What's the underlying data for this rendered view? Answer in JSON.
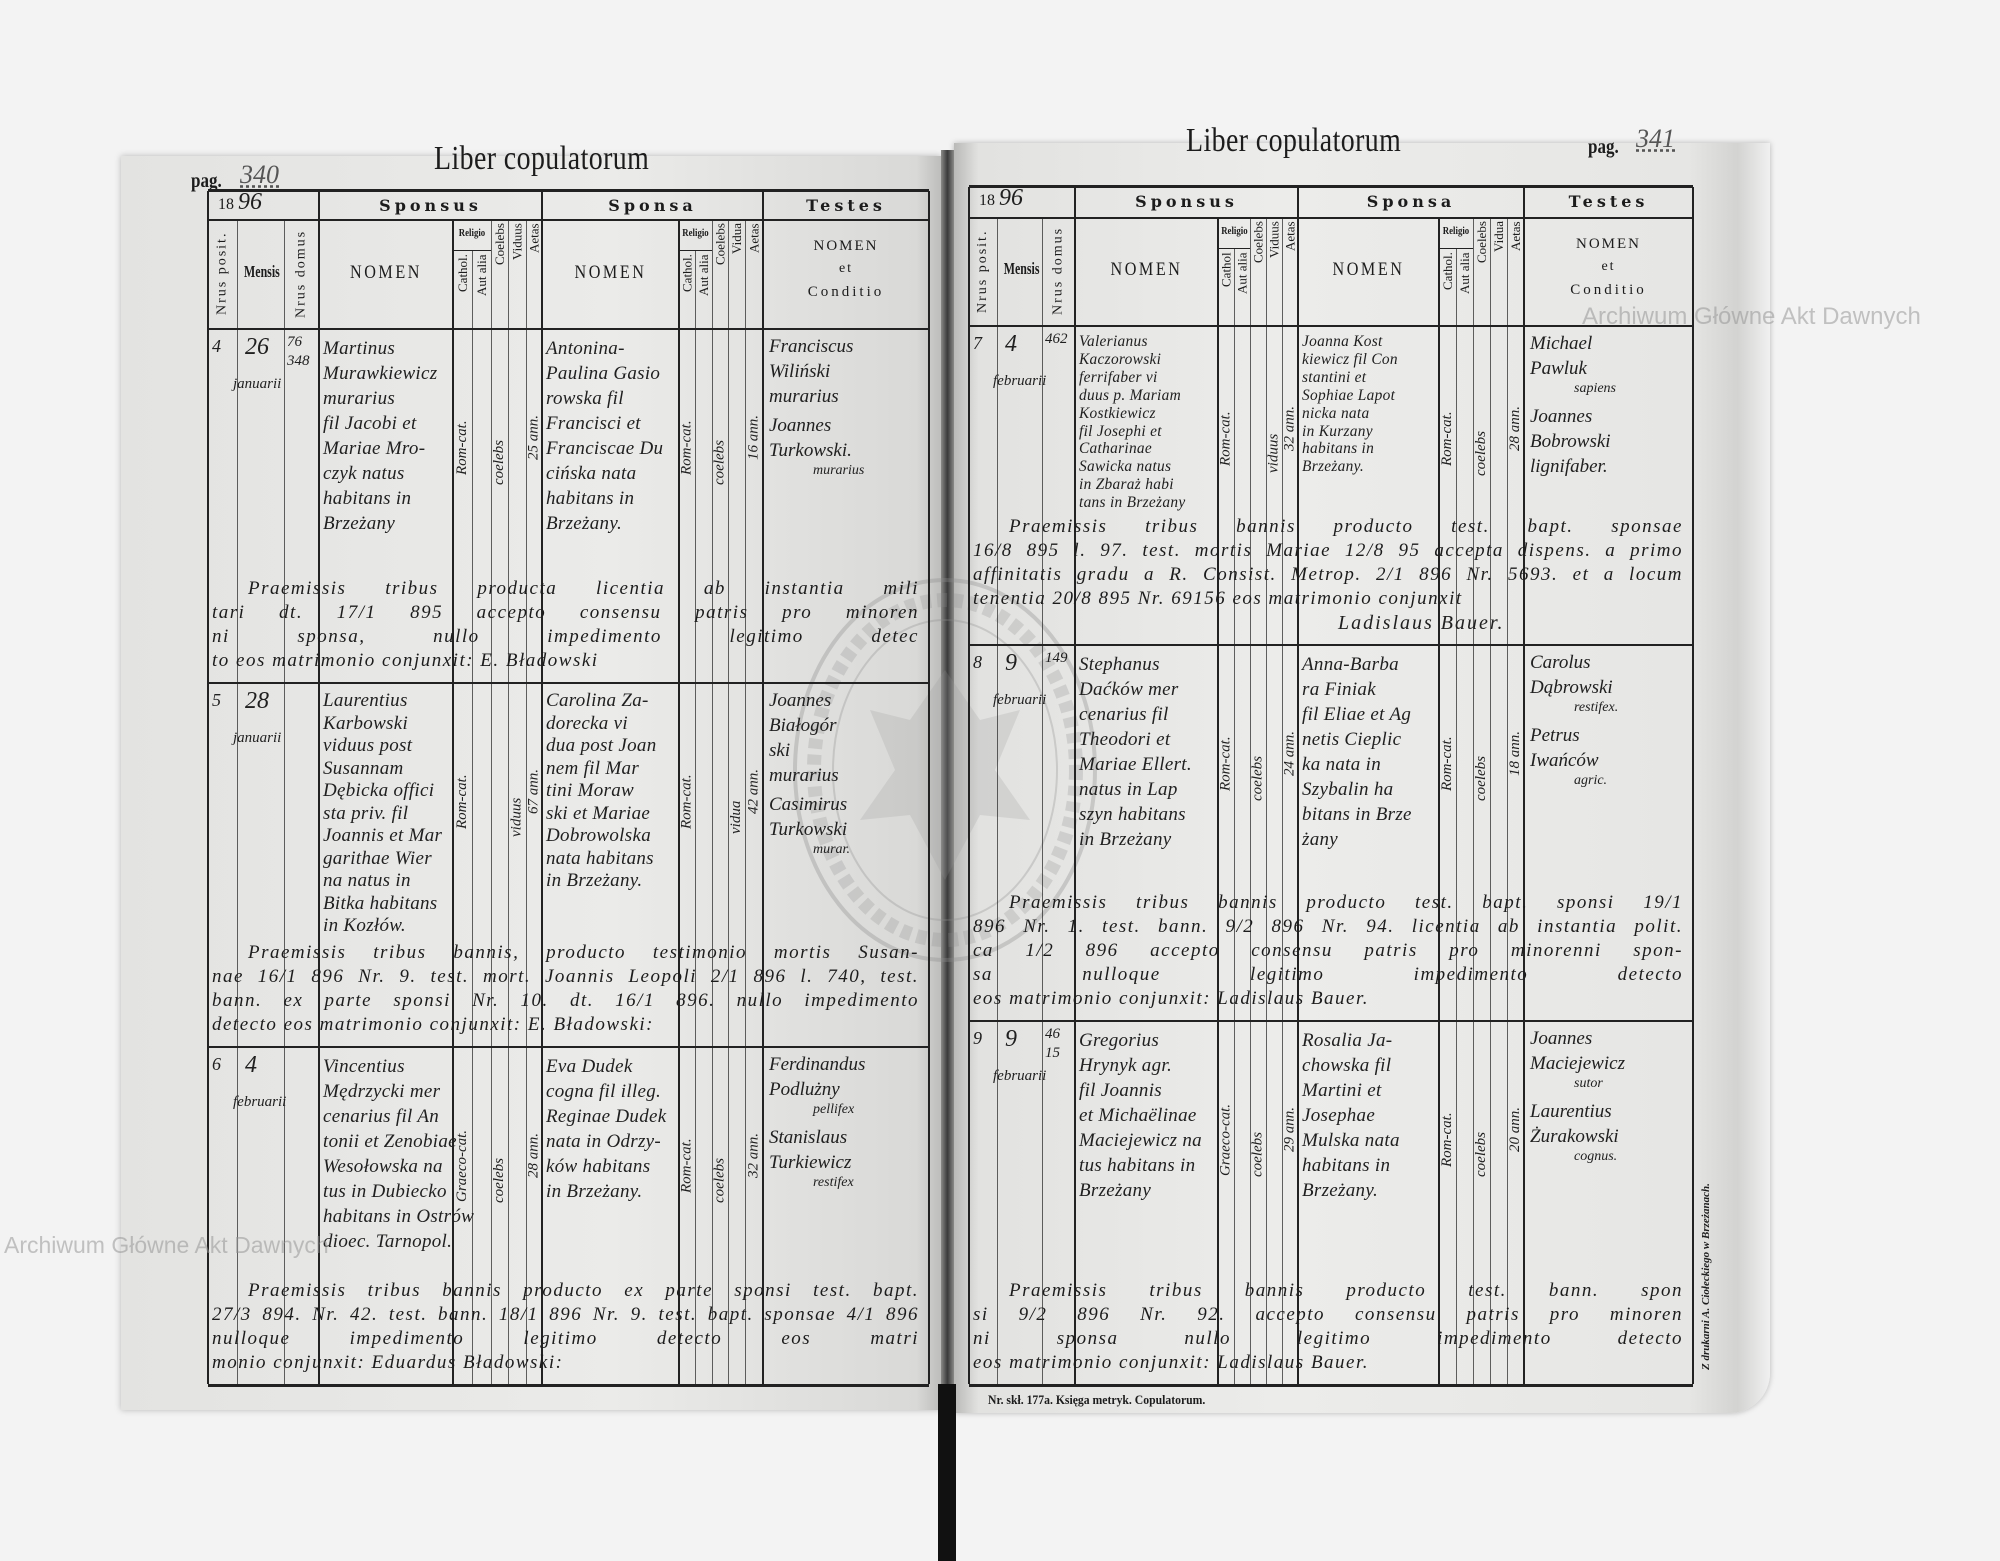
{
  "watermark": {
    "archive_name": "Archiwum Główne Akt Dawnych",
    "seal_text": "ARCHIWUM GŁÓWNE AKT DAWNYCH"
  },
  "footer": {
    "form_number": "Nr. skł. 177a. Księga metryk. Copulatorum.",
    "printer": "Z drukarni A. Ciołeckiego w Brzeżanach."
  },
  "pages": {
    "left": {
      "pag_label": "pag.",
      "pag_number": "340",
      "title": "Liber copulatorum",
      "header": {
        "year_printed": "18",
        "year_written": "96",
        "group_sponsus": "Sponsus",
        "group_sponsa": "Sponsa",
        "group_testes": "Testes",
        "col_nr_posit": "Nrus posit.",
        "col_mensis": "Mensis",
        "col_nr_domus": "Nrus domus",
        "sponsus_nomen": "NOMEN",
        "sponsus_religio": "Religio",
        "sponsus_sub": [
          "Cathol.",
          "Aut alia",
          "Coelebs",
          "Viduus",
          "Aetas"
        ],
        "sponsa_nomen": "NOMEN",
        "sponsa_religio": "Religio",
        "sponsa_sub": [
          "Cathol.",
          "Aut alia",
          "Coelebs",
          "Vidua",
          "Aetas"
        ],
        "testes_lines": [
          "NOMEN",
          "et",
          "Conditio"
        ]
      },
      "entries": [
        {
          "nr": "4",
          "day": "26",
          "month": "januarii",
          "domus": [
            "76",
            "348"
          ],
          "sponsus": {
            "lines": [
              "Martinus",
              "Murawkiewicz",
              "murarius",
              "fil Jacobi et",
              "Mariae Mro-",
              "czyk natus",
              "habitans in",
              "Brzeżany"
            ],
            "religio": "Rom-cat.",
            "status": "coelebs",
            "status_col": "coelebs",
            "aetas": "25 ann."
          },
          "sponsa": {
            "lines": [
              "Antonina-",
              "Paulina Gasio",
              "rowska fil",
              "Francisci et",
              "Franciscae Du",
              "cińska nata",
              "habitans in",
              "Brzeżany."
            ],
            "religio": "Rom-cat.",
            "status": "coelebs",
            "status_col": "coelebs",
            "aetas": "16 ann."
          },
          "testes": [
            {
              "lines": [
                "Franciscus",
                "Wiliński",
                "murarius"
              ],
              "conditio": ""
            },
            {
              "lines": [
                "Joannes",
                "Turkowski."
              ],
              "conditio": "murarius"
            }
          ],
          "remarks": [
            "Praemissis tribus  producta licentia ab instantia mili",
            "tari dt. 17/1 895 accepto consensu patris pro minoren",
            "ni sponsa, nullo impedimento legitimo detec",
            "to eos matrimonio conjunxit: E. Bładowski"
          ]
        },
        {
          "nr": "5",
          "day": "28",
          "month": "januarii",
          "domus": [],
          "sponsus": {
            "lines": [
              "Laurentius",
              "Karbowski",
              "viduus post",
              "Susannam",
              "Dębicka offici",
              "sta priv. fil",
              "Joannis et Mar",
              "garithae Wier",
              "na natus in",
              "Bitka habitans",
              "in Kozłów."
            ],
            "religio": "Rom-cat.",
            "status": "viduus",
            "status_col": "viduus",
            "aetas": "67 ann."
          },
          "sponsa": {
            "lines": [
              "Carolina Za-",
              "dorecka vi",
              "dua post Joan",
              "nem fil Mar",
              "tini Moraw",
              "ski et Mariae",
              "Dobrowolska",
              "nata habitans",
              "in Brzeżany."
            ],
            "religio": "Rom-cat.",
            "status": "vidua",
            "status_col": "viduus",
            "aetas": "42 ann."
          },
          "testes": [
            {
              "lines": [
                "Joannes",
                "Białogór",
                "ski",
                "murarius"
              ],
              "conditio": ""
            },
            {
              "lines": [
                "Casimirus",
                "Turkowski"
              ],
              "conditio": "murar."
            }
          ],
          "remarks": [
            "Praemissis tribus bannis, producto testimonio mortis Susan-",
            "nae 16/1 896 Nr. 9. test. mort. Joannis Leopoli 2/1 896 l. 740, test.",
            "bann. ex parte sponsi Nr. 10. dt. 16/1 896. nullo impedimento",
            "detecto eos matrimonio conjunxit: E. Bładowski:"
          ]
        },
        {
          "nr": "6",
          "day": "4",
          "month": "februarii",
          "domus": [],
          "sponsus": {
            "lines": [
              "Vincentius",
              "Mędrzycki mer",
              "cenarius fil An",
              "tonii et Zenobiae",
              "Wesołowska na",
              "tus in Dubiecko",
              "habitans in Ostrów",
              "dioec. Tarnopol."
            ],
            "religio": "Graeco-cat.",
            "status": "coelebs",
            "status_col": "coelebs",
            "aetas": "28 ann."
          },
          "sponsa": {
            "lines": [
              "Eva Dudek",
              "cogna fil illeg.",
              "Reginae Dudek",
              "nata in Odrzy-",
              "ków habitans",
              "in Brzeżany."
            ],
            "religio": "Rom-cat.",
            "status": "coelebs",
            "status_col": "coelebs",
            "aetas": "32 ann."
          },
          "testes": [
            {
              "lines": [
                "Ferdinandus",
                "Podlużny"
              ],
              "conditio": "pellifex"
            },
            {
              "lines": [
                "Stanislaus",
                "Turkiewicz"
              ],
              "conditio": "restifex"
            }
          ],
          "remarks": [
            "Praemissis tribus bannis producto ex parte sponsi test. bapt.",
            "27/3 894. Nr. 42. test. bann. 18/1 896 Nr. 9. test. bapt. sponsae 4/1 896",
            "nulloque impedimento legitimo detecto eos matri",
            "monio conjunxit: Eduardus Bładowski:"
          ]
        }
      ]
    },
    "right": {
      "pag_label": "pag.",
      "pag_number": "341",
      "title": "Liber copulatorum",
      "header": {
        "year_printed": "18",
        "year_written": "96",
        "group_sponsus": "Sponsus",
        "group_sponsa": "Sponsa",
        "group_testes": "Testes",
        "col_nr_posit": "Nrus posit.",
        "col_mensis": "Mensis",
        "col_nr_domus": "Nrus domus",
        "sponsus_nomen": "NOMEN",
        "sponsus_religio": "Religio",
        "sponsus_sub": [
          "Cathol",
          "Aut alia",
          "Coelebs",
          "Viduus",
          "Aetas"
        ],
        "sponsa_nomen": "NOMEN",
        "sponsa_religio": "Religio",
        "sponsa_sub": [
          "Cathol.",
          "Aut alia",
          "Coelebs",
          "Vidua",
          "Aetas"
        ],
        "testes_lines": [
          "NOMEN",
          "et",
          "Conditio"
        ]
      },
      "entries": [
        {
          "nr": "7",
          "day": "4",
          "month": "februarii",
          "domus": [
            "462"
          ],
          "sponsus": {
            "lines": [
              "Valerianus",
              "Kaczorowski",
              "ferrifaber vi",
              "duus p. Mariam",
              "Kostkiewicz",
              "fil Josephi et",
              "Catharinae",
              "Sawicka natus",
              "in Zbaraż habi",
              "tans in Brzeżany"
            ],
            "religio": "Rom-cat.",
            "status": "viduus",
            "status_col": "viduus",
            "aetas": "32 ann."
          },
          "sponsa": {
            "lines": [
              "Joanna Kost",
              "kiewicz fil Con",
              "stantini et",
              "Sophiae Lapot",
              "nicka nata",
              "in Kurzany",
              "habitans in",
              "Brzeżany."
            ],
            "religio": "Rom-cat.",
            "status": "coelebs",
            "status_col": "coelebs",
            "aetas": "28 ann."
          },
          "testes": [
            {
              "lines": [
                "Michael",
                "Pawluk"
              ],
              "conditio": "sapiens"
            },
            {
              "lines": [
                "Joannes",
                "Bobrowski",
                "lignifaber."
              ],
              "conditio": ""
            }
          ],
          "remarks": [
            "Praemissis tribus bannis producto test. bapt. sponsae",
            "16/8 895 l. 97. test. mortis Mariae 12/8 95 accepta dispens. a primo",
            "affinitatis gradu a R. Consist. Metrop. 2/1 896 Nr. 5693. et a locum",
            "tenentia 20/8 895 Nr. 69156 eos matrimonio conjunxit"
          ],
          "signature": "Ladislaus Bauer."
        },
        {
          "nr": "8",
          "day": "9",
          "month": "februarii",
          "domus": [
            "149"
          ],
          "sponsus": {
            "lines": [
              "Stephanus",
              "Daćków mer",
              "cenarius fil",
              "Theodori et",
              "Mariae Ellert.",
              "natus in Lap",
              "szyn habitans",
              "in Brzeżany"
            ],
            "religio": "Rom-cat.",
            "status": "coelebs",
            "status_col": "coelebs",
            "aetas": "24 ann."
          },
          "sponsa": {
            "lines": [
              "Anna-Barba",
              "ra Finiak",
              "fil Eliae et Ag",
              "netis Cieplic",
              "ka nata in",
              "Szybalin ha",
              "bitans in Brze",
              "żany"
            ],
            "religio": "Rom-cat.",
            "status": "coelebs",
            "status_col": "coelebs",
            "aetas": "18 ann."
          },
          "testes": [
            {
              "lines": [
                "Carolus",
                "Dąbrowski"
              ],
              "conditio": "restifex."
            },
            {
              "lines": [
                "Petrus",
                "Iwańców"
              ],
              "conditio": "agric."
            }
          ],
          "remarks": [
            "Praemissis tribus bannis producto test. bapt. sponsi 19/1",
            "896 Nr. 1. test. bann. 9/2 896 Nr. 94. licentia ab instantia polit.",
            "ca 1/2 896 accepto consensu patris pro minorenni spon-",
            "sa nulloque legitimo impedimento detecto",
            "eos matrimonio conjunxit: Ladislaus Bauer."
          ]
        },
        {
          "nr": "9",
          "day": "9",
          "month": "februarii",
          "domus": [
            "46",
            "15"
          ],
          "sponsus": {
            "lines": [
              "Gregorius",
              "Hrynyk agr.",
              "fil Joannis",
              "et Michaëlinae",
              "Maciejewicz na",
              "tus habitans in",
              "Brzeżany"
            ],
            "religio": "Graeco-cat.",
            "status": "coelebs",
            "status_col": "coelebs",
            "aetas": "29 ann."
          },
          "sponsa": {
            "lines": [
              "Rosalia Ja-",
              "chowska fil",
              "Martini et",
              "Josephae",
              "Mulska nata",
              "habitans in",
              "Brzeżany."
            ],
            "religio": "Rom-cat.",
            "status": "coelebs",
            "status_col": "coelebs",
            "aetas": "20 ann."
          },
          "testes": [
            {
              "lines": [
                "Joannes",
                "Maciejewicz"
              ],
              "conditio": "sutor"
            },
            {
              "lines": [
                "Laurentius",
                "Żurakowski"
              ],
              "conditio": "cognus."
            }
          ],
          "remarks": [
            "Praemissis tribus bannis producto test. bann. spon",
            "si 9/2 896 Nr. 92. accepto consensu patris pro minoren",
            "ni sponsa nullo legitimo impedimento detecto",
            "eos matrimonio conjunxit: Ladislaus Bauer."
          ]
        }
      ]
    }
  }
}
